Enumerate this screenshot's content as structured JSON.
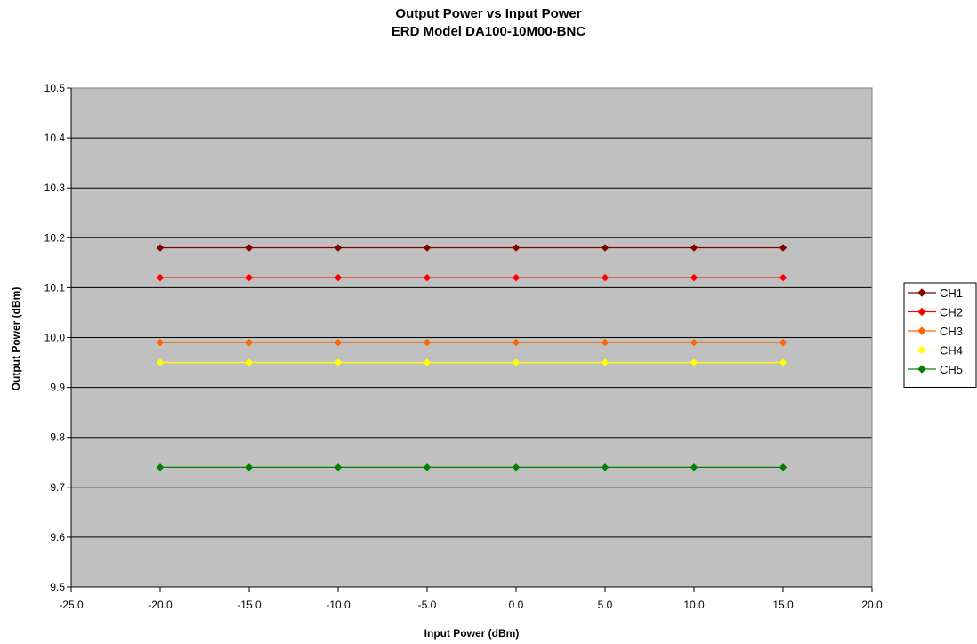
{
  "chart_data": {
    "type": "line",
    "title": "Output Power vs Input Power",
    "subtitle": "ERD Model DA100-10M00-BNC",
    "xlabel": "Input Power (dBm)",
    "ylabel": "Output Power (dBm)",
    "xlim": [
      -25,
      20
    ],
    "ylim": [
      9.5,
      10.5
    ],
    "xticks": [
      "-25.0",
      "-20.0",
      "-15.0",
      "-10.0",
      "-5.0",
      "0.0",
      "5.0",
      "10.0",
      "15.0",
      "20.0"
    ],
    "yticks": [
      "9.5",
      "9.6",
      "9.7",
      "9.8",
      "9.9",
      "10.0",
      "10.1",
      "10.2",
      "10.3",
      "10.4",
      "10.5"
    ],
    "grid": "horizontal",
    "legend_position": "right",
    "plot_background": "#c0c0c0",
    "x": [
      -20,
      -15,
      -10,
      -5,
      0,
      5,
      10,
      15
    ],
    "series": [
      {
        "name": "CH1",
        "color": "#800000",
        "values": [
          10.18,
          10.18,
          10.18,
          10.18,
          10.18,
          10.18,
          10.18,
          10.18
        ]
      },
      {
        "name": "CH2",
        "color": "#ff0000",
        "values": [
          10.12,
          10.12,
          10.12,
          10.12,
          10.12,
          10.12,
          10.12,
          10.12
        ]
      },
      {
        "name": "CH3",
        "color": "#ff6600",
        "values": [
          9.99,
          9.99,
          9.99,
          9.99,
          9.99,
          9.99,
          9.99,
          9.99
        ]
      },
      {
        "name": "CH4",
        "color": "#ffff00",
        "values": [
          9.95,
          9.95,
          9.95,
          9.95,
          9.95,
          9.95,
          9.95,
          9.95
        ]
      },
      {
        "name": "CH5",
        "color": "#008000",
        "values": [
          9.74,
          9.74,
          9.74,
          9.74,
          9.74,
          9.74,
          9.74,
          9.74
        ]
      }
    ]
  }
}
